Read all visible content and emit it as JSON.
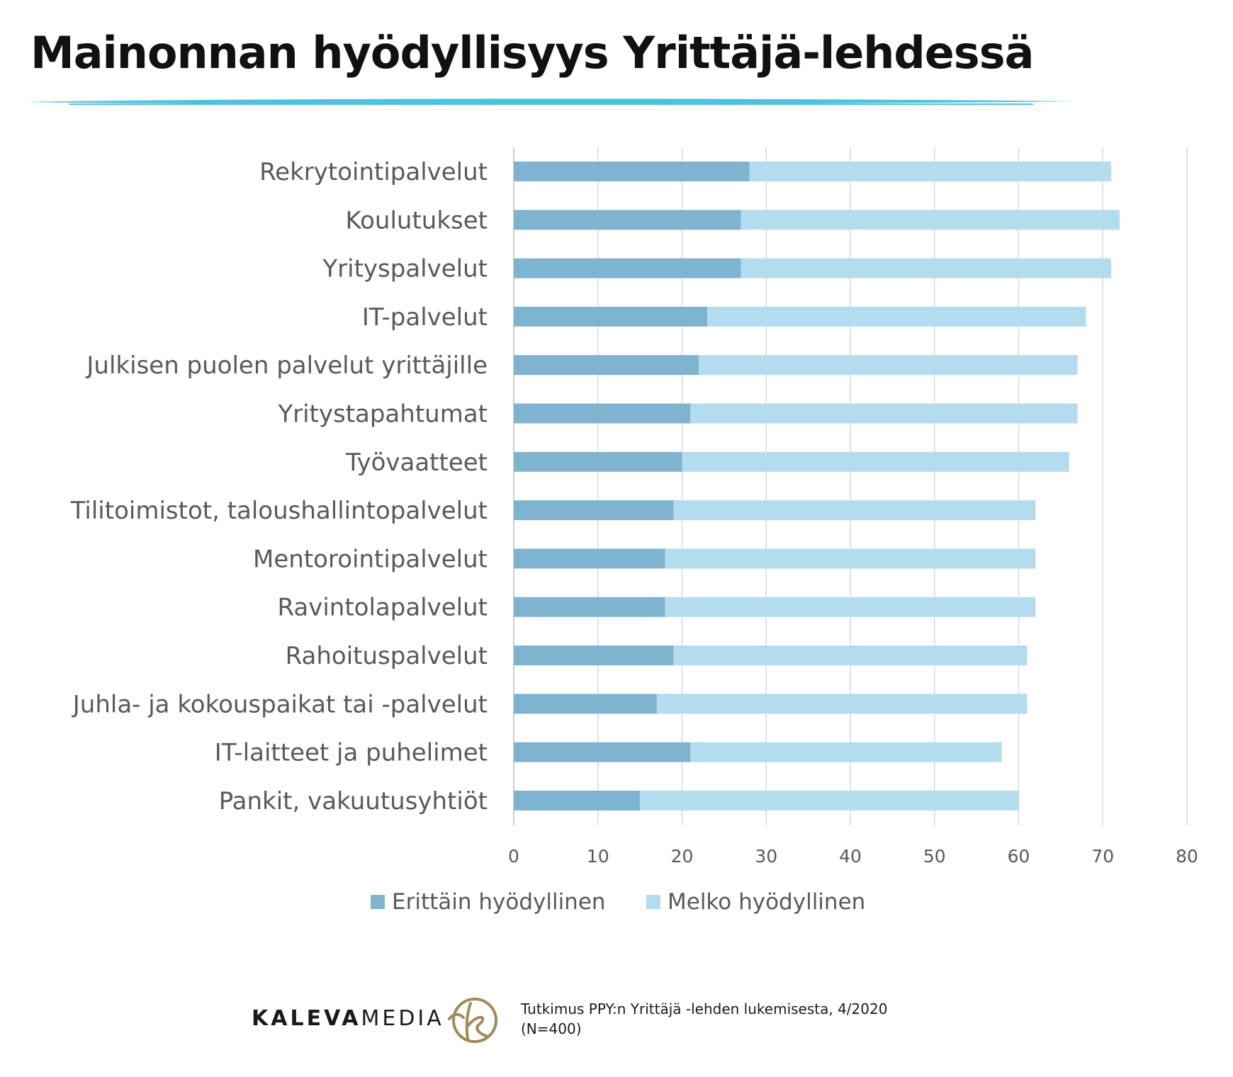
{
  "title": "Mainonnan hyödyllisyys Yrittäjä-lehdessä",
  "colors": {
    "accent_line": "#4cc3dc",
    "series_dark": "#7fb4d1",
    "series_light": "#b3dcef",
    "label_text": "#595959",
    "grid": "#d9d9d9",
    "brand_gold": "#a08a5a"
  },
  "chart_data": {
    "type": "bar",
    "orientation": "horizontal",
    "stacked": true,
    "categories": [
      "Rekrytointipalvelut",
      "Koulutukset",
      "Yrityspalvelut",
      "IT-palvelut",
      "Julkisen puolen palvelut yrittäjille",
      "Yritystapahtumat",
      "Työvaatteet",
      "Tilitoimistot, taloushallintopalvelut",
      "Mentorointipalvelut",
      "Ravintolapalvelut",
      "Rahoituspalvelut",
      "Juhla- ja kokouspaikat tai -palvelut",
      "IT-laitteet ja puhelimet",
      "Pankit, vakuutusyhtiöt"
    ],
    "series": [
      {
        "name": "Erittäin hyödyllinen",
        "color": "#7fb4d1",
        "values": [
          28,
          27,
          27,
          23,
          22,
          21,
          20,
          19,
          18,
          18,
          19,
          17,
          21,
          15
        ]
      },
      {
        "name": "Melko hyödyllinen",
        "color": "#b3dcef",
        "values": [
          43,
          45,
          44,
          45,
          45,
          46,
          46,
          43,
          44,
          44,
          42,
          44,
          37,
          45
        ]
      }
    ],
    "xlim": [
      0,
      80
    ],
    "xticks": [
      0,
      10,
      20,
      30,
      40,
      50,
      60,
      70,
      80
    ],
    "grid": true,
    "legend_position": "bottom"
  },
  "legend": {
    "items": [
      "Erittäin hyödyllinen",
      "Melko hyödyllinen"
    ]
  },
  "footer": {
    "brand_bold": "KALEVA",
    "brand_light": "MEDIA",
    "source_line1": "Tutkimus PPY:n Yrittäjä -lehden lukemisesta, 4/2020",
    "source_line2": "(N=400)"
  }
}
